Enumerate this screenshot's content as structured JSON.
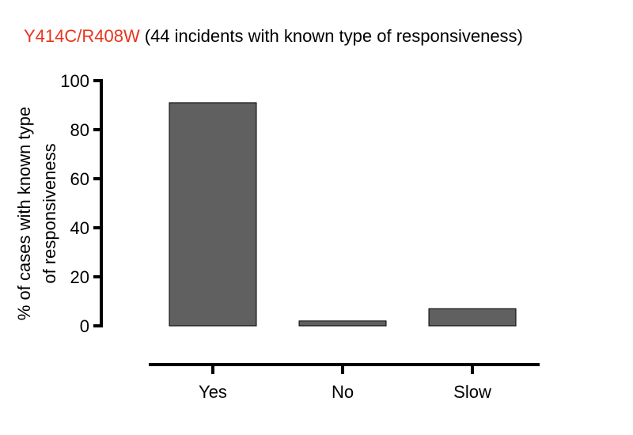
{
  "chart_data": {
    "type": "bar",
    "title_highlight": "Y414C/R408W",
    "title": "(44 incidents with known type of responsiveness)",
    "y_label": [
      "% of cases with  known type",
      "of responsiveness"
    ],
    "categories": [
      "Yes",
      "No",
      "Slow"
    ],
    "values": [
      91,
      2,
      7
    ],
    "color": "#606060",
    "title_highlight_color": "#e8341c",
    "ylim": [
      0,
      100
    ],
    "yticks": [
      0,
      20,
      40,
      60,
      80,
      100
    ]
  }
}
